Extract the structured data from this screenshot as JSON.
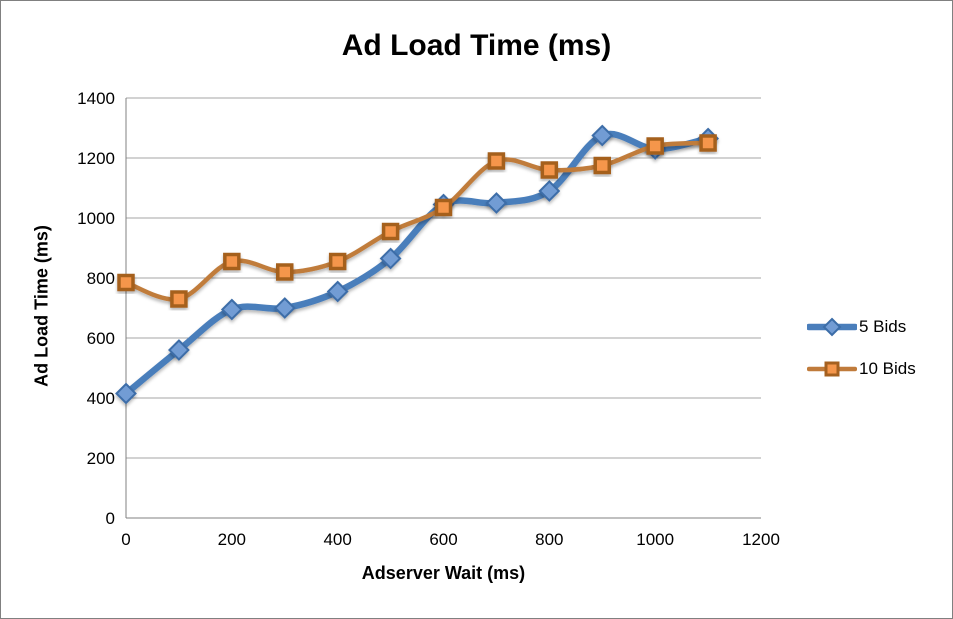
{
  "chart_data": {
    "type": "line",
    "title": "Ad Load Time (ms)",
    "xlabel": "Adserver Wait (ms)",
    "ylabel": "Ad Load Time (ms)",
    "x": [
      0,
      100,
      200,
      300,
      400,
      500,
      600,
      700,
      800,
      900,
      1000,
      1100
    ],
    "series": [
      {
        "name": "5 Bids",
        "values": [
          415,
          560,
          695,
          700,
          755,
          865,
          1045,
          1050,
          1090,
          1275,
          1230,
          1265
        ],
        "line_color": "#4A7EBB",
        "line_width": 6.5,
        "marker": "diamond",
        "marker_fill": "#729CD4",
        "marker_stroke": "#3C6DA8"
      },
      {
        "name": "10 Bids",
        "values": [
          785,
          730,
          855,
          820,
          855,
          955,
          1035,
          1190,
          1160,
          1175,
          1240,
          1250
        ],
        "line_color": "#C07B3B",
        "line_width": 4.5,
        "marker": "square",
        "marker_fill": "#F5964B",
        "marker_stroke": "#A5601F"
      }
    ],
    "xlim": [
      0,
      1200
    ],
    "ylim": [
      0,
      1400
    ],
    "x_ticks": [
      0,
      200,
      400,
      600,
      800,
      1000,
      1200
    ],
    "y_ticks": [
      0,
      200,
      400,
      600,
      800,
      1000,
      1200,
      1400
    ],
    "grid": "horizontal",
    "gridline_color": "#A6A6A6",
    "axis_color": "#808080",
    "legend_position": "right",
    "smoothed_lines": true
  }
}
